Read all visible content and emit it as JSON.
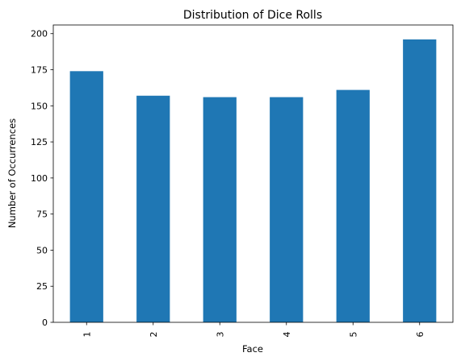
{
  "chart_data": {
    "type": "bar",
    "title": "Distribution of Dice Rolls",
    "xlabel": "Face",
    "ylabel": "Number of Occurrences",
    "categories": [
      "1",
      "2",
      "3",
      "4",
      "5",
      "6"
    ],
    "values": [
      174,
      157,
      156,
      156,
      161,
      196
    ],
    "ylim": [
      0,
      206
    ],
    "yticks": [
      0,
      25,
      50,
      75,
      100,
      125,
      150,
      175,
      200
    ],
    "xtick_rotation": "vertical",
    "grid": false,
    "legend": "none",
    "bar_color": "#1f77b4"
  }
}
